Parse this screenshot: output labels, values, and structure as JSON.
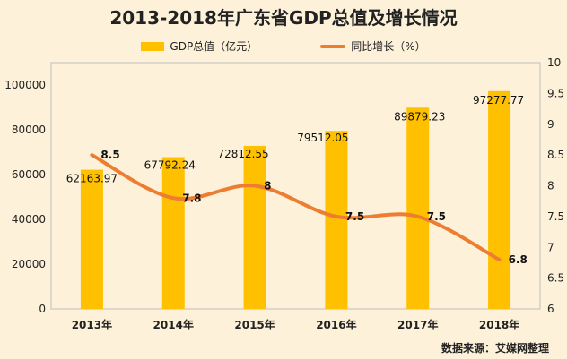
{
  "chart_data": {
    "type": "bar",
    "title": "2013-2018年广东省GDP总值及增长情况",
    "categories": [
      "2013年",
      "2014年",
      "2015年",
      "2016年",
      "2017年",
      "2018年"
    ],
    "series": [
      {
        "name": "GDP总值（亿元）",
        "type": "bar",
        "axis": "left",
        "values": [
          62163.97,
          67792.24,
          72812.55,
          79512.05,
          89879.23,
          97277.77
        ],
        "labels": [
          "62163.97",
          "67792.24",
          "72812.55",
          "79512.05",
          "89879.23",
          "97277.77"
        ]
      },
      {
        "name": "同比增长（%）",
        "type": "line",
        "axis": "right",
        "values": [
          8.5,
          7.8,
          8,
          7.5,
          7.5,
          6.8
        ],
        "labels": [
          "8.5",
          "7.8",
          "8",
          "7.5",
          "7.5",
          "6.8"
        ]
      }
    ],
    "y_left": {
      "ylim": [
        0,
        110000
      ],
      "ticks": [
        "0",
        "20000",
        "40000",
        "60000",
        "80000",
        "100000"
      ]
    },
    "y_right": {
      "ylim": [
        6,
        10
      ],
      "ticks": [
        "6",
        "6.5",
        "7",
        "7.5",
        "8",
        "8.5",
        "9",
        "9.5",
        "10"
      ]
    },
    "legend_position": "top",
    "grid": false,
    "colors": {
      "bar": "#ffc000",
      "line": "#ed7d31",
      "background": "#fdf1d9"
    }
  },
  "source": "数据来源：艾媒网整理"
}
